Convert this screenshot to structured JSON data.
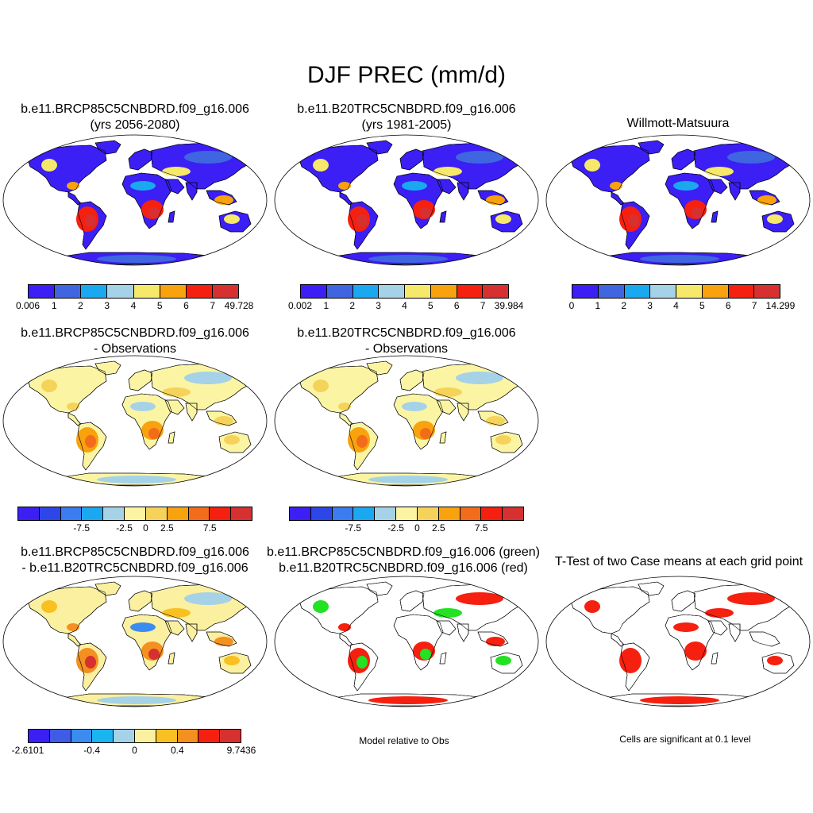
{
  "main_title": "DJF PREC (mm/d)",
  "panels": [
    {
      "title1": "b.e11.BRCP85C5CNBDRD.f09_g16.006",
      "title2": "(yrs 2056-2080)",
      "scheme": "abs"
    },
    {
      "title1": "b.e11.B20TRC5CNBDRD.f09_g16.006",
      "title2": "(yrs 1981-2005)",
      "scheme": "abs"
    },
    {
      "title1": "",
      "title2": "Willmott-Matsuura",
      "scheme": "abs"
    },
    {
      "title1": "b.e11.BRCP85C5CNBDRD.f09_g16.006",
      "title2": "- Observations",
      "scheme": "bias"
    },
    {
      "title1": "b.e11.B20TRC5CNBDRD.f09_g16.006",
      "title2": "- Observations",
      "scheme": "bias"
    },
    {
      "title1": "b.e11.BRCP85C5CNBDRD.f09_g16.006",
      "title2": "- b.e11.B20TRC5CNBDRD.f09_g16.006",
      "scheme": "diff"
    },
    {
      "title1": "b.e11.BRCP85C5CNBDRD.f09_g16.006 (green)",
      "title2": "b.e11.B20TRC5CNBDRD.f09_g16.006 (red)",
      "scheme": "relative"
    },
    {
      "title1": "T-Test of two Case means at each grid point",
      "title2": "",
      "scheme": "ttest"
    }
  ],
  "colorbars": {
    "abs_colors": [
      "#3b1ff5",
      "#3f66e0",
      "#1aa9f0",
      "#a6d2e8",
      "#f5e86a",
      "#f8a20e",
      "#f5200f",
      "#d63030"
    ],
    "bias_colors": [
      "#3b1ff5",
      "#2d46e8",
      "#3b7cf0",
      "#1aa9f0",
      "#a6d2e8",
      "#fbf5a3",
      "#f5d35a",
      "#f8a20e",
      "#f36c1a",
      "#f5200f",
      "#d63030"
    ],
    "diff_colors": [
      "#3b1ff5",
      "#3f5ce6",
      "#3b8cf0",
      "#1ab4f0",
      "#a6d2e8",
      "#fbf0a0",
      "#f8c020",
      "#f39020",
      "#f5200f",
      "#d63030"
    ],
    "cb1_labels": [
      "0.006",
      "1",
      "2",
      "3",
      "4",
      "5",
      "6",
      "7",
      "49.728"
    ],
    "cb2_labels": [
      "0.002",
      "1",
      "2",
      "3",
      "4",
      "5",
      "6",
      "7",
      "39.984"
    ],
    "cb3_labels": [
      "0",
      "1",
      "2",
      "3",
      "4",
      "5",
      "6",
      "7",
      "14.299"
    ],
    "bias_labels": [
      "-7.5",
      "-2.5",
      "0",
      "2.5",
      "7.5"
    ],
    "diff_labels": [
      "-2.6101",
      "-0.4",
      "0",
      "0.4",
      "9.7436"
    ]
  },
  "notes": {
    "relative": "Model relative to Obs",
    "ttest": "Cells are significant at 0.1 level"
  }
}
